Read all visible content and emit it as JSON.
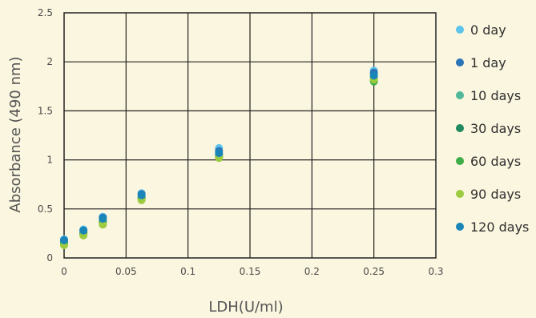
{
  "chart_data": {
    "type": "scatter",
    "title": "",
    "xlabel": "LDH(U/ml)",
    "ylabel": "Absorbance (490 nm)",
    "xlim": [
      0,
      0.3
    ],
    "ylim": [
      0,
      2.5
    ],
    "x_ticks": [
      "0",
      "0.05",
      "0.1",
      "0.15",
      "0.2",
      "0.25",
      "0.3"
    ],
    "y_ticks": [
      "0",
      "0.5",
      "1",
      "1.5",
      "2",
      "2.5"
    ],
    "grid": true,
    "legend_position": "right",
    "x": [
      0,
      0.0156,
      0.03125,
      0.0625,
      0.125,
      0.25
    ],
    "series": [
      {
        "name": "0 day",
        "color": "#5ec3ea",
        "values": [
          0.19,
          0.29,
          0.42,
          0.66,
          1.12,
          1.91
        ]
      },
      {
        "name": "1 day",
        "color": "#2b74b8",
        "values": [
          0.18,
          0.28,
          0.41,
          0.65,
          1.09,
          1.89
        ]
      },
      {
        "name": "10 days",
        "color": "#4fb79a",
        "values": [
          0.16,
          0.26,
          0.38,
          0.62,
          1.06,
          1.84
        ]
      },
      {
        "name": "30 days",
        "color": "#1f8a5e",
        "values": [
          0.15,
          0.25,
          0.37,
          0.61,
          1.04,
          1.81
        ]
      },
      {
        "name": "60 days",
        "color": "#3fae49",
        "values": [
          0.14,
          0.24,
          0.36,
          0.6,
          1.03,
          1.8
        ]
      },
      {
        "name": "90 days",
        "color": "#9ccb3f",
        "values": [
          0.13,
          0.23,
          0.34,
          0.59,
          1.02,
          1.82
        ]
      },
      {
        "name": "120 days",
        "color": "#1a86b8",
        "values": [
          0.18,
          0.28,
          0.4,
          0.64,
          1.07,
          1.86
        ]
      }
    ]
  }
}
